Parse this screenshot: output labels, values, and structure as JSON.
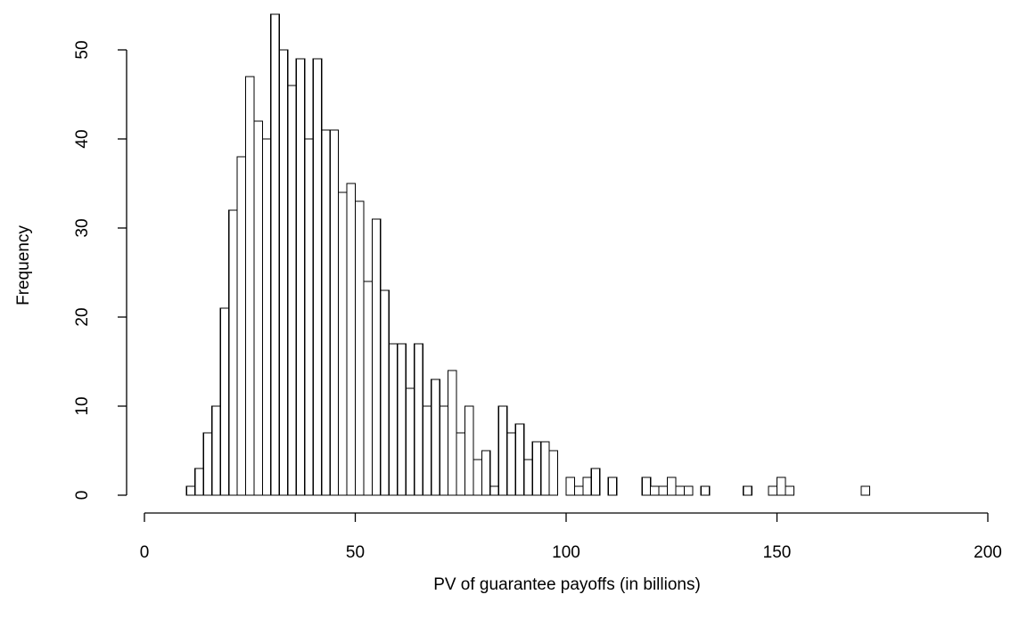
{
  "chart_data": {
    "type": "histogram",
    "xlabel": "PV of guarantee payoffs (in billions)",
    "ylabel": "Frequency",
    "xlim": [
      0,
      200
    ],
    "ylim": [
      0,
      50
    ],
    "x_ticks": [
      0,
      50,
      100,
      150,
      200
    ],
    "y_ticks": [
      0,
      10,
      20,
      30,
      40,
      50
    ],
    "bin_start": 10,
    "bin_width": 2,
    "values": [
      1,
      3,
      7,
      10,
      21,
      32,
      38,
      47,
      42,
      40,
      54,
      50,
      46,
      49,
      40,
      49,
      41,
      41,
      34,
      35,
      33,
      24,
      31,
      23,
      17,
      17,
      12,
      17,
      10,
      13,
      10,
      14,
      7,
      10,
      4,
      5,
      1,
      10,
      7,
      8,
      4,
      6,
      6,
      5,
      0,
      2,
      1,
      2,
      3,
      0,
      2,
      0,
      0,
      0,
      2,
      1,
      1,
      2,
      1,
      1,
      0,
      1,
      0,
      0,
      0,
      0,
      1,
      0,
      0,
      1,
      2,
      1,
      0,
      0,
      0,
      0,
      0,
      0,
      0,
      0,
      1
    ],
    "grid": false,
    "legend": "none"
  }
}
